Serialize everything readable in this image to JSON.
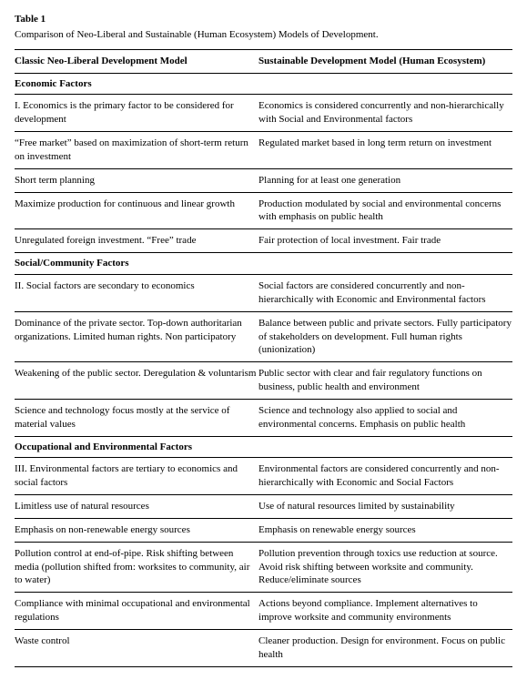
{
  "table_label": "Table 1",
  "caption": "Comparison of Neo-Liberal and Sustainable (Human Ecosystem) Models of Development.",
  "headers": {
    "left": "Classic Neo-Liberal Development Model",
    "right": "Sustainable Development Model (Human Ecosystem)"
  },
  "sections": [
    {
      "title": "Economic Factors",
      "rows": [
        {
          "left": "I. Economics is the primary factor to be considered for development",
          "right": "Economics is considered concurrently and non-hierarchically with Social and Environmental factors"
        },
        {
          "left": "“Free market” based on maximization of short-term return on investment",
          "right": "Regulated market based in long term return on investment"
        },
        {
          "left": "Short term planning",
          "right": "Planning for at least one generation"
        },
        {
          "left": "Maximize production for continuous and linear growth",
          "right": "Production modulated by social and environmental concerns with emphasis on public health"
        },
        {
          "left": "Unregulated foreign investment. “Free” trade",
          "right": "Fair protection of local investment. Fair trade"
        }
      ]
    },
    {
      "title": "Social/Community Factors",
      "rows": [
        {
          "left": "II. Social factors are secondary to economics",
          "right": "Social factors are considered concurrently and non-hierarchically with Economic and Environmental factors"
        },
        {
          "left": "Dominance of the private sector. Top-down authoritarian organizations. Limited human rights. Non participatory",
          "right": "Balance between public and private sectors. Fully participatory of stakeholders on development. Full human rights (unionization)"
        },
        {
          "left": "Weakening of the public sector. Deregulation & voluntarism",
          "right": "Public sector with clear and fair regulatory functions on business, public health and environment"
        },
        {
          "left": "Science and technology focus mostly at the service of material values",
          "right": "Science and technology also applied to social and environmental concerns. Emphasis on public health"
        }
      ]
    },
    {
      "title": "Occupational and Environmental Factors",
      "rows": [
        {
          "left": "III. Environmental factors are tertiary to economics and social factors",
          "right": "Environmental factors are considered concurrently and non-hierarchically with Economic and Social Factors"
        },
        {
          "left": "Limitless use of natural resources",
          "right": "Use of natural resources limited by sustainability"
        },
        {
          "left": "Emphasis on non-renewable energy sources",
          "right": "Emphasis on renewable energy sources"
        },
        {
          "left": "Pollution control at end-of-pipe. Risk shifting between media (pollution shifted from: worksites to community, air to water)",
          "right": "Pollution prevention through toxics use reduction at source. Avoid risk shifting between worksite and community. Reduce/eliminate sources"
        },
        {
          "left": "Compliance with minimal occupational and environmental regulations",
          "right": "Actions beyond compliance. Implement alternatives to improve worksite and community environments"
        },
        {
          "left": "Waste control",
          "right": "Cleaner production. Design for environment. Focus on public health"
        }
      ]
    }
  ]
}
